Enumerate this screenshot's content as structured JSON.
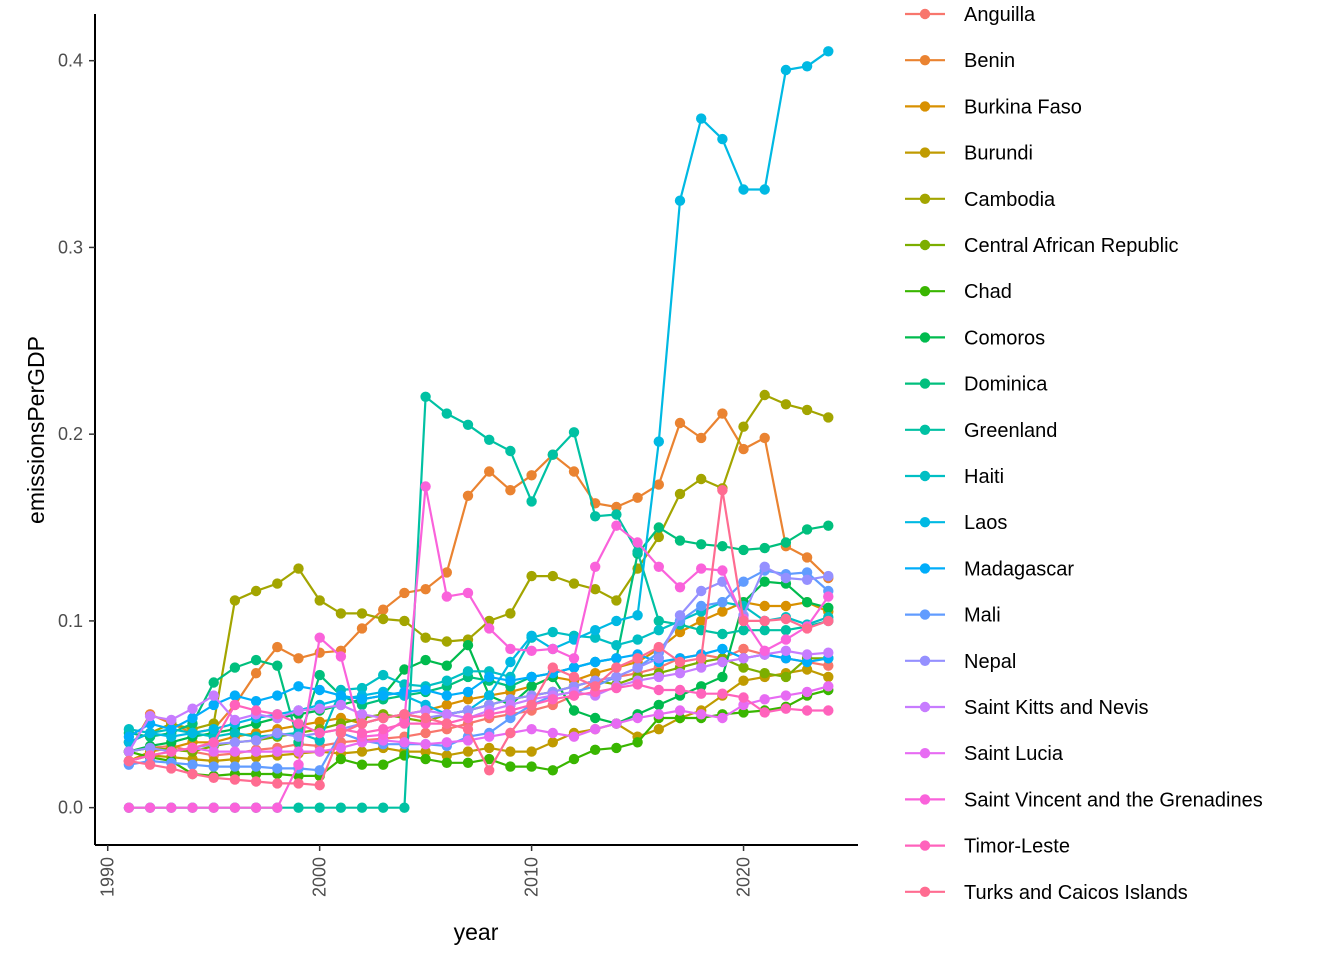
{
  "chart_data": {
    "type": "line",
    "xlabel": "year",
    "ylabel": "emissionsPerGDP",
    "xlim": [
      1989.4,
      2025.4
    ],
    "ylim": [
      -0.02,
      0.425
    ],
    "x_ticks": [
      1990,
      2000,
      2010,
      2020
    ],
    "y_ticks": [
      0.0,
      0.1,
      0.2,
      0.3,
      0.4
    ],
    "x_tick_labels": [
      "1990",
      "2000",
      "2010",
      "2020"
    ],
    "y_tick_labels": [
      "0.0",
      "0.1",
      "0.2",
      "0.3",
      "0.4"
    ],
    "legend_position": "right",
    "grid": false,
    "x": [
      1991,
      1992,
      1993,
      1994,
      1995,
      1996,
      1997,
      1998,
      1999,
      2000,
      2001,
      2002,
      2003,
      2004,
      2005,
      2006,
      2007,
      2008,
      2009,
      2010,
      2011,
      2012,
      2013,
      2014,
      2015,
      2016,
      2017,
      2018,
      2019,
      2020,
      2021,
      2022,
      2023,
      2024
    ],
    "series": [
      {
        "name": "Anguilla",
        "color": "#F8766D",
        "values": [
          0.03,
          0.032,
          0.033,
          0.03,
          0.028,
          0.029,
          0.031,
          0.032,
          0.034,
          0.033,
          0.035,
          0.036,
          0.037,
          0.038,
          0.04,
          0.042,
          0.045,
          0.048,
          0.05,
          0.052,
          0.055,
          0.06,
          0.068,
          0.07,
          0.072,
          0.075,
          0.08,
          0.082,
          0.08,
          0.085,
          0.082,
          0.08,
          0.078,
          0.076
        ]
      },
      {
        "name": "Benin",
        "color": "#EA8331",
        "values": [
          0.03,
          0.05,
          0.045,
          0.04,
          0.042,
          0.055,
          0.072,
          0.086,
          0.08,
          0.083,
          0.084,
          0.096,
          0.106,
          0.115,
          0.117,
          0.126,
          0.167,
          0.18,
          0.17,
          0.178,
          0.189,
          0.18,
          0.163,
          0.161,
          0.166,
          0.173,
          0.206,
          0.198,
          0.211,
          0.192,
          0.198,
          0.14,
          0.134,
          0.123
        ]
      },
      {
        "name": "Burkina Faso",
        "color": "#D89000",
        "values": [
          0.025,
          0.03,
          0.032,
          0.035,
          0.035,
          0.038,
          0.04,
          0.042,
          0.044,
          0.046,
          0.048,
          0.045,
          0.048,
          0.05,
          0.052,
          0.055,
          0.058,
          0.06,
          0.062,
          0.065,
          0.07,
          0.068,
          0.072,
          0.075,
          0.078,
          0.085,
          0.094,
          0.1,
          0.105,
          0.11,
          0.108,
          0.108,
          0.11,
          0.105
        ]
      },
      {
        "name": "Burundi",
        "color": "#C09B00",
        "values": [
          0.025,
          0.028,
          0.027,
          0.026,
          0.025,
          0.026,
          0.027,
          0.028,
          0.029,
          0.03,
          0.029,
          0.03,
          0.032,
          0.03,
          0.03,
          0.028,
          0.03,
          0.032,
          0.03,
          0.03,
          0.035,
          0.04,
          0.042,
          0.045,
          0.038,
          0.042,
          0.048,
          0.052,
          0.06,
          0.068,
          0.07,
          0.072,
          0.074,
          0.07
        ]
      },
      {
        "name": "Cambodia",
        "color": "#A3A500",
        "values": [
          0.035,
          0.04,
          0.045,
          0.042,
          0.045,
          0.111,
          0.116,
          0.12,
          0.128,
          0.111,
          0.104,
          0.104,
          0.101,
          0.1,
          0.091,
          0.089,
          0.09,
          0.1,
          0.104,
          0.124,
          0.124,
          0.12,
          0.117,
          0.111,
          0.128,
          0.145,
          0.168,
          0.176,
          0.171,
          0.204,
          0.221,
          0.216,
          0.213,
          0.209
        ]
      },
      {
        "name": "Central African Republic",
        "color": "#7CAE00",
        "values": [
          0.03,
          0.032,
          0.031,
          0.03,
          0.033,
          0.035,
          0.036,
          0.038,
          0.04,
          0.042,
          0.045,
          0.048,
          0.05,
          0.048,
          0.046,
          0.05,
          0.052,
          0.055,
          0.058,
          0.06,
          0.062,
          0.065,
          0.068,
          0.066,
          0.07,
          0.072,
          0.075,
          0.078,
          0.08,
          0.075,
          0.072,
          0.07,
          0.08,
          0.08
        ]
      },
      {
        "name": "Chad",
        "color": "#39B600",
        "values": [
          0.03,
          0.027,
          0.025,
          0.018,
          0.017,
          0.018,
          0.018,
          0.018,
          0.017,
          0.017,
          0.026,
          0.023,
          0.023,
          0.028,
          0.026,
          0.024,
          0.024,
          0.026,
          0.022,
          0.022,
          0.02,
          0.026,
          0.031,
          0.032,
          0.035,
          0.048,
          0.048,
          0.048,
          0.05,
          0.051,
          0.052,
          0.054,
          0.06,
          0.063
        ]
      },
      {
        "name": "Comoros",
        "color": "#00BB4E",
        "values": [
          0.03,
          0.033,
          0.035,
          0.038,
          0.04,
          0.042,
          0.045,
          0.048,
          0.05,
          0.052,
          0.055,
          0.058,
          0.06,
          0.074,
          0.079,
          0.076,
          0.087,
          0.06,
          0.055,
          0.065,
          0.07,
          0.052,
          0.048,
          0.045,
          0.05,
          0.055,
          0.06,
          0.065,
          0.07,
          0.11,
          0.121,
          0.12,
          0.11,
          0.107
        ]
      },
      {
        "name": "Dominica",
        "color": "#00BF7D",
        "values": [
          0.04,
          0.038,
          0.04,
          0.045,
          0.067,
          0.075,
          0.079,
          0.076,
          0.035,
          0.071,
          0.06,
          0.055,
          0.058,
          0.06,
          0.062,
          0.065,
          0.07,
          0.068,
          0.065,
          0.07,
          0.072,
          0.075,
          0.078,
          0.08,
          0.136,
          0.15,
          0.143,
          0.141,
          0.14,
          0.138,
          0.139,
          0.142,
          0.149,
          0.151
        ]
      },
      {
        "name": "Greenland",
        "color": "#00C1A3",
        "values": [
          0.0,
          0.0,
          0.0,
          0.0,
          0.0,
          0.0,
          0.0,
          0.0,
          0.0,
          0.0,
          0.0,
          0.0,
          0.0,
          0.0,
          0.22,
          0.211,
          0.205,
          0.197,
          0.191,
          0.164,
          0.189,
          0.201,
          0.156,
          0.157,
          0.137,
          0.1,
          0.098,
          0.095,
          0.093,
          0.095,
          0.095,
          0.095,
          0.097,
          0.1
        ]
      },
      {
        "name": "Haiti",
        "color": "#00BFC4",
        "values": [
          0.042,
          0.04,
          0.042,
          0.04,
          0.038,
          0.04,
          0.038,
          0.039,
          0.04,
          0.036,
          0.063,
          0.064,
          0.071,
          0.066,
          0.065,
          0.068,
          0.073,
          0.073,
          0.07,
          0.091,
          0.094,
          0.092,
          0.091,
          0.087,
          0.09,
          0.095,
          0.1,
          0.105,
          0.11,
          0.108,
          0.1,
          0.102,
          0.098,
          0.102
        ]
      },
      {
        "name": "Laos",
        "color": "#00B9E3",
        "values": [
          0.035,
          0.04,
          0.038,
          0.04,
          0.042,
          0.045,
          0.048,
          0.05,
          0.052,
          0.055,
          0.058,
          0.06,
          0.062,
          0.06,
          0.055,
          0.05,
          0.052,
          0.06,
          0.078,
          0.092,
          0.085,
          0.09,
          0.095,
          0.1,
          0.103,
          0.196,
          0.325,
          0.369,
          0.358,
          0.331,
          0.331,
          0.395,
          0.397,
          0.405
        ]
      },
      {
        "name": "Madagascar",
        "color": "#00ADFA",
        "values": [
          0.038,
          0.045,
          0.042,
          0.048,
          0.055,
          0.06,
          0.057,
          0.06,
          0.065,
          0.063,
          0.06,
          0.058,
          0.06,
          0.062,
          0.063,
          0.06,
          0.062,
          0.07,
          0.068,
          0.07,
          0.072,
          0.075,
          0.078,
          0.08,
          0.082,
          0.078,
          0.08,
          0.082,
          0.085,
          0.08,
          0.082,
          0.08,
          0.078,
          0.08
        ]
      },
      {
        "name": "Mali",
        "color": "#619CFF",
        "values": [
          0.023,
          0.025,
          0.024,
          0.023,
          0.022,
          0.022,
          0.022,
          0.021,
          0.021,
          0.02,
          0.04,
          0.036,
          0.034,
          0.034,
          0.034,
          0.033,
          0.038,
          0.04,
          0.048,
          0.055,
          0.06,
          0.062,
          0.065,
          0.07,
          0.075,
          0.083,
          0.1,
          0.108,
          0.11,
          0.121,
          0.127,
          0.125,
          0.126,
          0.116
        ]
      },
      {
        "name": "Nepal",
        "color": "#9590FF",
        "values": [
          0.03,
          0.032,
          0.03,
          0.032,
          0.034,
          0.035,
          0.036,
          0.04,
          0.038,
          0.04,
          0.042,
          0.045,
          0.048,
          0.05,
          0.048,
          0.05,
          0.052,
          0.055,
          0.058,
          0.06,
          0.062,
          0.065,
          0.068,
          0.07,
          0.075,
          0.08,
          0.103,
          0.116,
          0.121,
          0.103,
          0.129,
          0.123,
          0.122,
          0.124
        ]
      },
      {
        "name": "Saint Kitts and Nevis",
        "color": "#C77CFF",
        "values": [
          0.03,
          0.049,
          0.047,
          0.053,
          0.06,
          0.047,
          0.05,
          0.048,
          0.052,
          0.053,
          0.055,
          0.05,
          0.048,
          0.05,
          0.052,
          0.05,
          0.048,
          0.052,
          0.055,
          0.058,
          0.06,
          0.062,
          0.06,
          0.065,
          0.068,
          0.07,
          0.072,
          0.075,
          0.078,
          0.08,
          0.082,
          0.084,
          0.082,
          0.083
        ]
      },
      {
        "name": "Saint Lucia",
        "color": "#E76BF3",
        "values": [
          0.025,
          0.028,
          0.03,
          0.032,
          0.03,
          0.03,
          0.03,
          0.03,
          0.03,
          0.03,
          0.032,
          0.035,
          0.036,
          0.035,
          0.034,
          0.035,
          0.036,
          0.038,
          0.04,
          0.042,
          0.04,
          0.038,
          0.042,
          0.045,
          0.048,
          0.05,
          0.052,
          0.05,
          0.048,
          0.055,
          0.058,
          0.06,
          0.062,
          0.065
        ]
      },
      {
        "name": "Saint Vincent and the Grenadines",
        "color": "#FA62DB",
        "values": [
          0.0,
          0.0,
          0.0,
          0.0,
          0.0,
          0.0,
          0.0,
          0.0,
          0.023,
          0.091,
          0.081,
          0.038,
          0.039,
          0.047,
          0.172,
          0.113,
          0.115,
          0.096,
          0.085,
          0.084,
          0.085,
          0.08,
          0.129,
          0.151,
          0.142,
          0.129,
          0.118,
          0.128,
          0.127,
          0.101,
          0.084,
          0.09,
          0.097,
          0.113
        ]
      },
      {
        "name": "Timor-Leste",
        "color": "#FF62BC",
        "values": [
          0.025,
          0.028,
          0.03,
          0.032,
          0.035,
          0.055,
          0.052,
          0.05,
          0.045,
          0.04,
          0.042,
          0.04,
          0.042,
          0.045,
          0.045,
          0.045,
          0.048,
          0.05,
          0.052,
          0.055,
          0.058,
          0.06,
          0.062,
          0.064,
          0.066,
          0.063,
          0.063,
          0.061,
          0.061,
          0.059,
          0.051,
          0.053,
          0.052,
          0.052
        ]
      },
      {
        "name": "Turks and Caicos Islands",
        "color": "#FF6C91",
        "values": [
          0.025,
          0.023,
          0.021,
          0.018,
          0.016,
          0.015,
          0.014,
          0.013,
          0.013,
          0.012,
          0.04,
          0.045,
          0.048,
          0.05,
          0.048,
          0.045,
          0.042,
          0.02,
          0.04,
          0.055,
          0.075,
          0.07,
          0.065,
          0.075,
          0.08,
          0.086,
          0.078,
          0.08,
          0.17,
          0.1,
          0.1,
          0.101,
          0.096,
          0.1
        ]
      }
    ]
  }
}
